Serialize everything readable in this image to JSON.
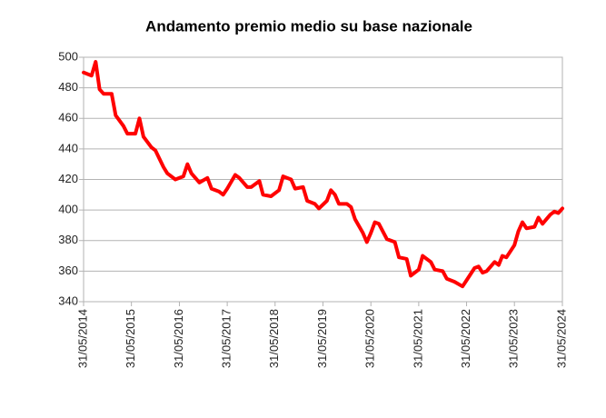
{
  "chart_data": {
    "type": "line",
    "title": "Andamento premio medio su base nazionale",
    "color": "#ff0000",
    "grid": true,
    "ylim": [
      340,
      500
    ],
    "yticks": [
      340,
      360,
      380,
      400,
      420,
      440,
      460,
      480,
      500
    ],
    "xlim": [
      "2014-05-31",
      "2024-05-31"
    ],
    "xticks": [
      {
        "value": "2014-05-31",
        "label": "31/05/2014"
      },
      {
        "value": "2015-05-31",
        "label": "31/05/2015"
      },
      {
        "value": "2016-05-31",
        "label": "31/05/2016"
      },
      {
        "value": "2017-05-31",
        "label": "31/05/2017"
      },
      {
        "value": "2018-05-31",
        "label": "31/05/2018"
      },
      {
        "value": "2019-05-31",
        "label": "31/05/2019"
      },
      {
        "value": "2020-05-31",
        "label": "31/05/2020"
      },
      {
        "value": "2021-05-31",
        "label": "31/05/2021"
      },
      {
        "value": "2022-05-31",
        "label": "31/05/2022"
      },
      {
        "value": "2023-05-31",
        "label": "31/05/2023"
      },
      {
        "value": "2024-05-31",
        "label": "31/05/2024"
      }
    ],
    "x": [
      "2014-05",
      "2014-07",
      "2014-08",
      "2014-09",
      "2014-10",
      "2014-12",
      "2015-01",
      "2015-03",
      "2015-04",
      "2015-06",
      "2015-07",
      "2015-08",
      "2015-10",
      "2015-11",
      "2016-01",
      "2016-02",
      "2016-04",
      "2016-06",
      "2016-07",
      "2016-08",
      "2016-10",
      "2016-12",
      "2017-01",
      "2017-03",
      "2017-04",
      "2017-05",
      "2017-07",
      "2017-08",
      "2017-10",
      "2017-11",
      "2018-01",
      "2018-02",
      "2018-04",
      "2018-06",
      "2018-07",
      "2018-09",
      "2018-10",
      "2018-12",
      "2019-01",
      "2019-03",
      "2019-04",
      "2019-06",
      "2019-07",
      "2019-08",
      "2019-09",
      "2019-11",
      "2019-12",
      "2020-01",
      "2020-03",
      "2020-04",
      "2020-05",
      "2020-06",
      "2020-07",
      "2020-09",
      "2020-11",
      "2020-12",
      "2021-02",
      "2021-03",
      "2021-05",
      "2021-06",
      "2021-08",
      "2021-09",
      "2021-11",
      "2021-12",
      "2022-01",
      "2022-02",
      "2022-04",
      "2022-05",
      "2022-07",
      "2022-08",
      "2022-09",
      "2022-10",
      "2022-12",
      "2023-01",
      "2023-02",
      "2023-03",
      "2023-05",
      "2023-06",
      "2023-07",
      "2023-08",
      "2023-10",
      "2023-11",
      "2023-12",
      "2024-02",
      "2024-03",
      "2024-04",
      "2024-05"
    ],
    "values": [
      490,
      488,
      497,
      479,
      476,
      476,
      462,
      455,
      450,
      450,
      460,
      448,
      441,
      439,
      428,
      424,
      420,
      422,
      430,
      424,
      418,
      421,
      414,
      412,
      410,
      414,
      423,
      421,
      415,
      415,
      419,
      410,
      409,
      413,
      422,
      420,
      414,
      415,
      406,
      404,
      401,
      406,
      413,
      410,
      404,
      404,
      402,
      394,
      385,
      379,
      385,
      392,
      391,
      381,
      379,
      369,
      368,
      357,
      361,
      370,
      366,
      361,
      360,
      355,
      354,
      353,
      350,
      354,
      362,
      363,
      359,
      360,
      366,
      364,
      370,
      369,
      377,
      386,
      392,
      388,
      389,
      395,
      391,
      397,
      399,
      398,
      401
    ]
  }
}
